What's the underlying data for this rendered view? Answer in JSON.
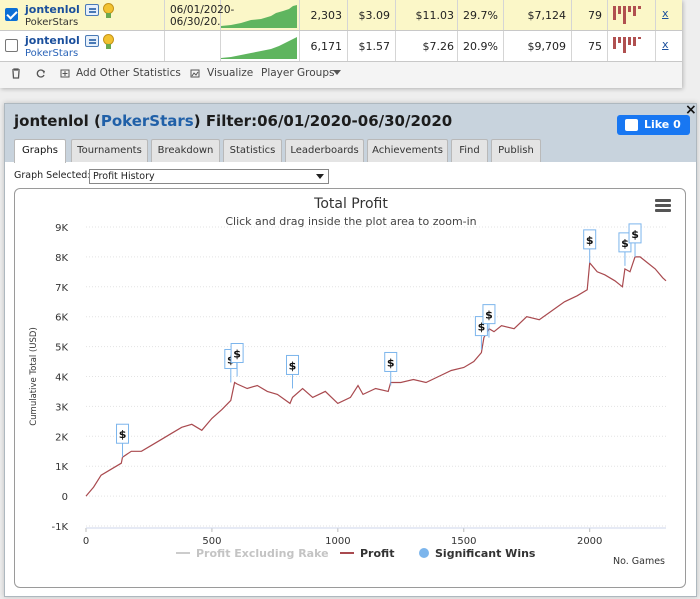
{
  "table": {
    "rows": [
      {
        "checked": true,
        "player": "jontenlol",
        "site": "PokerStars",
        "date_from": "06/01/2020-",
        "date_to": "06/30/20.",
        "hands": "2,303",
        "c1": "$3.09",
        "c2": "$11.03",
        "pct": "29.7%",
        "winnings": "$7,124",
        "score": "79",
        "remove": "x"
      },
      {
        "checked": false,
        "player": "jontenlol",
        "site": "PokerStars",
        "date_from": "",
        "date_to": "",
        "hands": "6,171",
        "c1": "$1.57",
        "c2": "$7.26",
        "pct": "20.9%",
        "winnings": "$9,709",
        "score": "75",
        "remove": "x"
      }
    ]
  },
  "toolbar": {
    "add_stats": "Add Other Statistics",
    "visualize": "Visualize",
    "player_groups": "Player Groups"
  },
  "dialog": {
    "title_player": "jontenlol",
    "title_site": "PokerStars",
    "title_filter": "Filter:06/01/2020-06/30/2020",
    "like_label": "Like 0",
    "close": "×",
    "tabs": [
      "Graphs",
      "Tournaments",
      "Breakdown",
      "Statistics",
      "Leaderboards",
      "Achievements",
      "Find",
      "Publish"
    ],
    "active_tab": "Graphs",
    "graph_selected_label": "Graph Selected:",
    "graph_selected_value": "Profit History"
  },
  "colors": {
    "profit": "#a94a4f",
    "excluding_rake": "#cccccc",
    "significant": "#7cb5ec",
    "spark": "#5fb55f",
    "bars": "#b05050"
  },
  "chart_data": {
    "type": "line",
    "title": "Total Profit",
    "subtitle": "Click and drag inside the plot area to zoom-in",
    "xlabel": "No. Games",
    "ylabel": "Cumulative Total (USD)",
    "xlim": [
      0,
      2303
    ],
    "ylim": [
      -1000,
      9000
    ],
    "xticks": [
      0,
      500,
      1000,
      1500,
      2000
    ],
    "yticks": [
      -1000,
      0,
      1000,
      2000,
      3000,
      4000,
      5000,
      6000,
      7000,
      8000,
      9000
    ],
    "ytick_labels": [
      "-1K",
      "0",
      "1K",
      "2K",
      "3K",
      "4K",
      "5K",
      "6K",
      "7K",
      "8K",
      "9K"
    ],
    "legend": [
      "Profit Excluding Rake",
      "Profit",
      "Significant Wins"
    ],
    "legend_placement": "bottom-center",
    "grid": true,
    "series": [
      {
        "name": "Profit",
        "x": [
          0,
          30,
          60,
          100,
          140,
          145,
          180,
          220,
          260,
          300,
          340,
          380,
          420,
          460,
          500,
          540,
          575,
          590,
          600,
          640,
          680,
          720,
          760,
          810,
          820,
          860,
          900,
          950,
          1000,
          1050,
          1080,
          1100,
          1150,
          1200,
          1210,
          1250,
          1300,
          1350,
          1400,
          1450,
          1500,
          1540,
          1570,
          1580,
          1600,
          1620,
          1650,
          1700,
          1750,
          1800,
          1850,
          1900,
          1950,
          1990,
          2000,
          2030,
          2060,
          2100,
          2130,
          2140,
          2160,
          2180,
          2200,
          2230,
          2260,
          2290,
          2303
        ],
        "y": [
          0,
          300,
          700,
          900,
          1100,
          1300,
          1500,
          1500,
          1700,
          1900,
          2100,
          2300,
          2400,
          2200,
          2600,
          2900,
          3200,
          3800,
          3750,
          3600,
          3700,
          3500,
          3400,
          3100,
          3300,
          3600,
          3300,
          3500,
          3100,
          3300,
          3700,
          3400,
          3600,
          3500,
          3800,
          3800,
          3900,
          3800,
          4000,
          4200,
          4300,
          4500,
          4800,
          5300,
          5600,
          5500,
          5700,
          5600,
          6000,
          5900,
          6200,
          6500,
          6700,
          6900,
          7800,
          7500,
          7400,
          7200,
          7000,
          7600,
          7500,
          8000,
          8000,
          7800,
          7600,
          7300,
          7200
        ]
      },
      {
        "name": "Significant Wins",
        "x": [
          145,
          575,
          600,
          820,
          1210,
          1570,
          1600,
          2000,
          2140,
          2180
        ],
        "y": [
          1300,
          3800,
          4000,
          3600,
          3700,
          4900,
          5300,
          7800,
          7700,
          8000
        ],
        "label": "$"
      }
    ]
  }
}
